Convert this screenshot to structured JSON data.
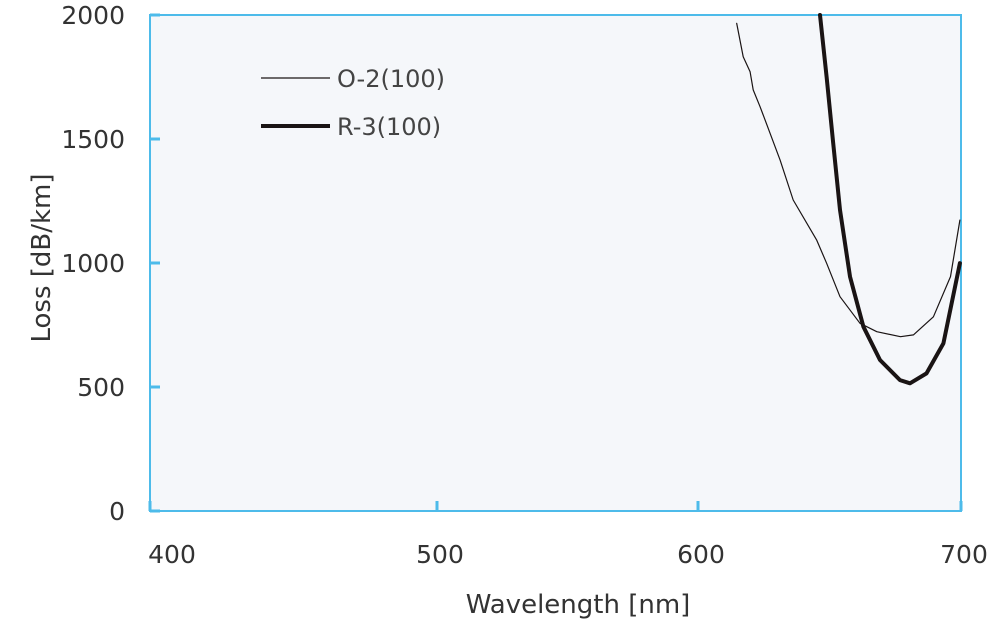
{
  "chart_data": {
    "type": "line",
    "title": "",
    "xlabel": "Wavelength [nm]",
    "ylabel": "Loss [dB/km]",
    "xlim": [
      400,
      700
    ],
    "ylim": [
      0,
      2000
    ],
    "xticks": [
      400,
      500,
      600,
      700
    ],
    "yticks": [
      0,
      500,
      1000,
      1500,
      2000
    ],
    "grid": false,
    "legend_position": "top-left",
    "colors": {
      "axis": "#4dbbea",
      "plot_bg": "#f5f7fa",
      "line": "#1a1414"
    },
    "series": [
      {
        "name": "O-2(100)",
        "style": "thin",
        "x": [
          614.7,
          617.2,
          619.8,
          621.0,
          623.6,
          626.7,
          631.2,
          636.2,
          645.1,
          648.9,
          654.0,
          661.6,
          668.0,
          677.0,
          681.9,
          689.5,
          696.0,
          699.6
        ],
        "y": [
          1966,
          1832,
          1771,
          1698,
          1630,
          1543,
          1415,
          1254,
          1093,
          999,
          864,
          757,
          723,
          703,
          710,
          783,
          945,
          1173
        ]
      },
      {
        "name": "R-3(100)",
        "style": "thick",
        "x": [
          646.4,
          648.9,
          651.4,
          654.0,
          657.8,
          662.9,
          669.2,
          676.8,
          680.6,
          686.9,
          693.3,
          699.6
        ],
        "y": [
          2000,
          1751,
          1483,
          1214,
          945,
          743,
          609,
          528,
          515,
          555,
          676,
          999
        ]
      }
    ]
  }
}
